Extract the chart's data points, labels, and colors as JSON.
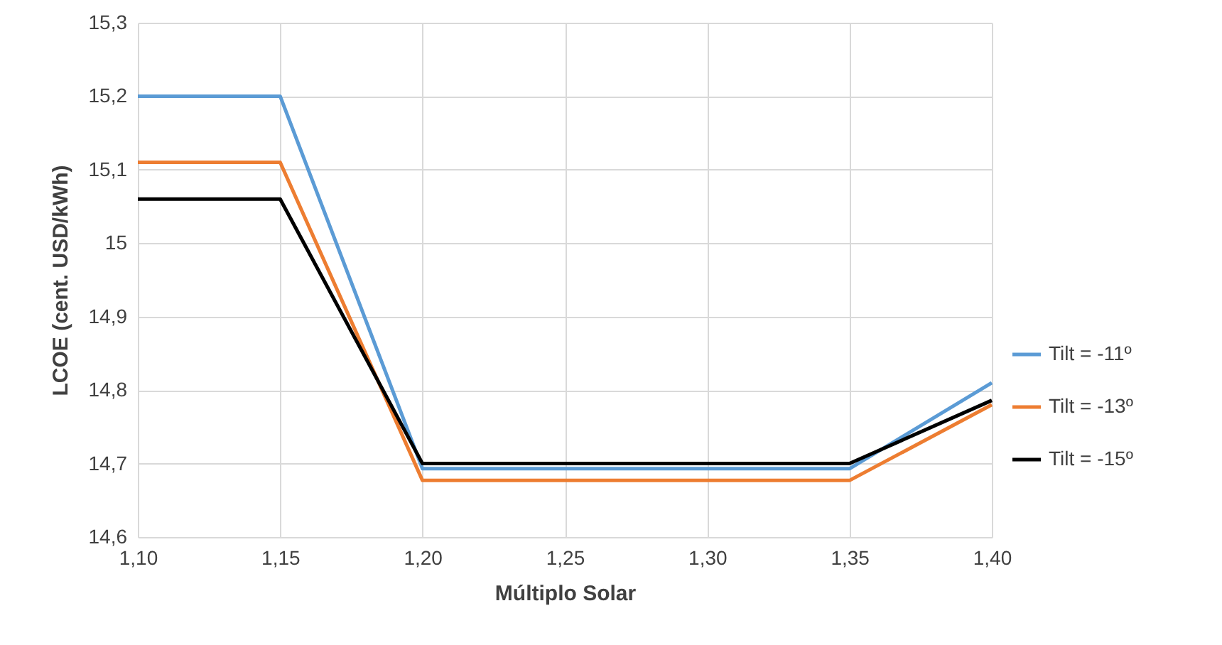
{
  "chart_data": {
    "type": "line",
    "xlabel": "Múltiplo Solar",
    "ylabel": "LCOE (cent. USD/kWh)",
    "x": [
      1.1,
      1.15,
      1.2,
      1.35,
      1.4
    ],
    "series": [
      {
        "name": "Tilt = -11º",
        "color": "#5b9bd5",
        "values": [
          15.2,
          15.2,
          14.693,
          14.693,
          14.81
        ]
      },
      {
        "name": "Tilt = -13º",
        "color": "#ed7d31",
        "values": [
          15.11,
          15.11,
          14.677,
          14.677,
          14.78
        ]
      },
      {
        "name": "Tilt = -15º",
        "color": "#000000",
        "values": [
          15.06,
          15.06,
          14.7,
          14.7,
          14.786
        ]
      }
    ],
    "xlim": [
      1.1,
      1.4
    ],
    "xticks": [
      {
        "value": 1.1,
        "label": "1,10"
      },
      {
        "value": 1.15,
        "label": "1,15"
      },
      {
        "value": 1.2,
        "label": "1,20"
      },
      {
        "value": 1.25,
        "label": "1,25"
      },
      {
        "value": 1.3,
        "label": "1,30"
      },
      {
        "value": 1.35,
        "label": "1,35"
      },
      {
        "value": 1.4,
        "label": "1,40"
      }
    ],
    "ylim": [
      14.6,
      15.3
    ],
    "yticks": [
      {
        "value": 14.6,
        "label": "14,6"
      },
      {
        "value": 14.7,
        "label": "14,7"
      },
      {
        "value": 14.8,
        "label": "14,8"
      },
      {
        "value": 14.9,
        "label": "14,9"
      },
      {
        "value": 15,
        "label": "15"
      },
      {
        "value": 15.1,
        "label": "15,1"
      },
      {
        "value": 15.2,
        "label": "15,2"
      },
      {
        "value": 15.3,
        "label": "15,3"
      }
    ],
    "grid": true,
    "legend": "right",
    "marker": "none",
    "line_style": "solid"
  }
}
